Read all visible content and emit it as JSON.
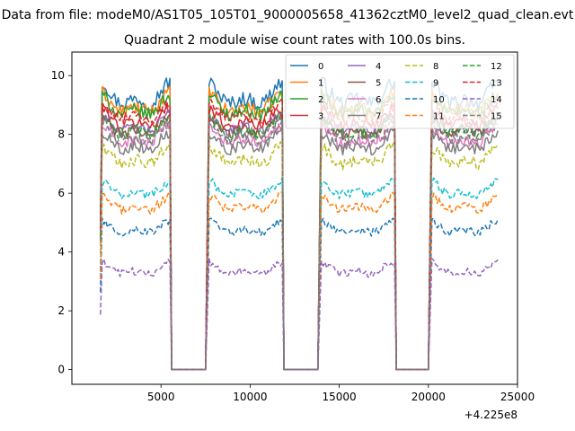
{
  "figure": {
    "suptitle": "Data from file: modeM0/AS1T05_105T01_9000005658_41362cztM0_level2_quad_clean.evt"
  },
  "chart_data": {
    "type": "line",
    "title": "Quadrant 2 module wise count rates with 100.0s bins.",
    "xlabel": "",
    "ylabel": "",
    "x_offset_label": "+4.225e8",
    "x_offset": 422500000,
    "xlim": [
      422500000,
      422525000
    ],
    "ylim": [
      -0.5,
      10.8
    ],
    "xticks": [
      5000,
      10000,
      15000,
      20000,
      25000
    ],
    "xtick_labels": [
      "5000",
      "10000",
      "15000",
      "20000",
      "25000"
    ],
    "yticks": [
      0,
      2,
      4,
      6,
      8,
      10
    ],
    "ytick_labels": [
      "0",
      "2",
      "4",
      "6",
      "8",
      "10"
    ],
    "grid": false,
    "legend": {
      "placement": "top-right",
      "columns": 4
    },
    "bin_seconds": 100,
    "x_start": 422501600,
    "x_end": 422523900,
    "on_intervals": [
      [
        422501600,
        422505500
      ],
      [
        422507600,
        422511800
      ],
      [
        422513900,
        422518100
      ],
      [
        422520100,
        422523900
      ]
    ],
    "series": [
      {
        "name": "0",
        "color": "#1f77b4",
        "style": "solid",
        "level": 9.3,
        "amp": 0.55
      },
      {
        "name": "1",
        "color": "#ff7f0e",
        "style": "solid",
        "level": 9.0,
        "amp": 0.5
      },
      {
        "name": "2",
        "color": "#2ca02c",
        "style": "solid",
        "level": 8.9,
        "amp": 0.5
      },
      {
        "name": "3",
        "color": "#d62728",
        "style": "solid",
        "level": 8.5,
        "amp": 0.45
      },
      {
        "name": "4",
        "color": "#9467bd",
        "style": "solid",
        "level": 8.3,
        "amp": 0.45
      },
      {
        "name": "5",
        "color": "#8c564b",
        "style": "solid",
        "level": 8.2,
        "amp": 0.45
      },
      {
        "name": "6",
        "color": "#e377c2",
        "style": "solid",
        "level": 7.9,
        "amp": 0.45
      },
      {
        "name": "7",
        "color": "#7f7f7f",
        "style": "solid",
        "level": 7.7,
        "amp": 0.45
      },
      {
        "name": "8",
        "color": "#bcbd22",
        "style": "dashed",
        "level": 7.2,
        "amp": 0.45
      },
      {
        "name": "9",
        "color": "#17becf",
        "style": "dashed",
        "level": 6.1,
        "amp": 0.35
      },
      {
        "name": "10",
        "color": "#1f77b4",
        "style": "dashed",
        "level": 4.8,
        "amp": 0.3
      },
      {
        "name": "11",
        "color": "#ff7f0e",
        "style": "dashed",
        "level": 5.6,
        "amp": 0.35
      },
      {
        "name": "12",
        "color": "#2ca02c",
        "style": "dashed",
        "level": 8.2,
        "amp": 0.45
      },
      {
        "name": "13",
        "color": "#d62728",
        "style": "dashed",
        "level": 8.7,
        "amp": 0.45
      },
      {
        "name": "14",
        "color": "#9467bd",
        "style": "dashed",
        "level": 3.4,
        "amp": 0.3
      },
      {
        "name": "15",
        "color": "#7f7f7f",
        "style": "dashed",
        "level": 8.0,
        "amp": 0.45
      }
    ]
  }
}
